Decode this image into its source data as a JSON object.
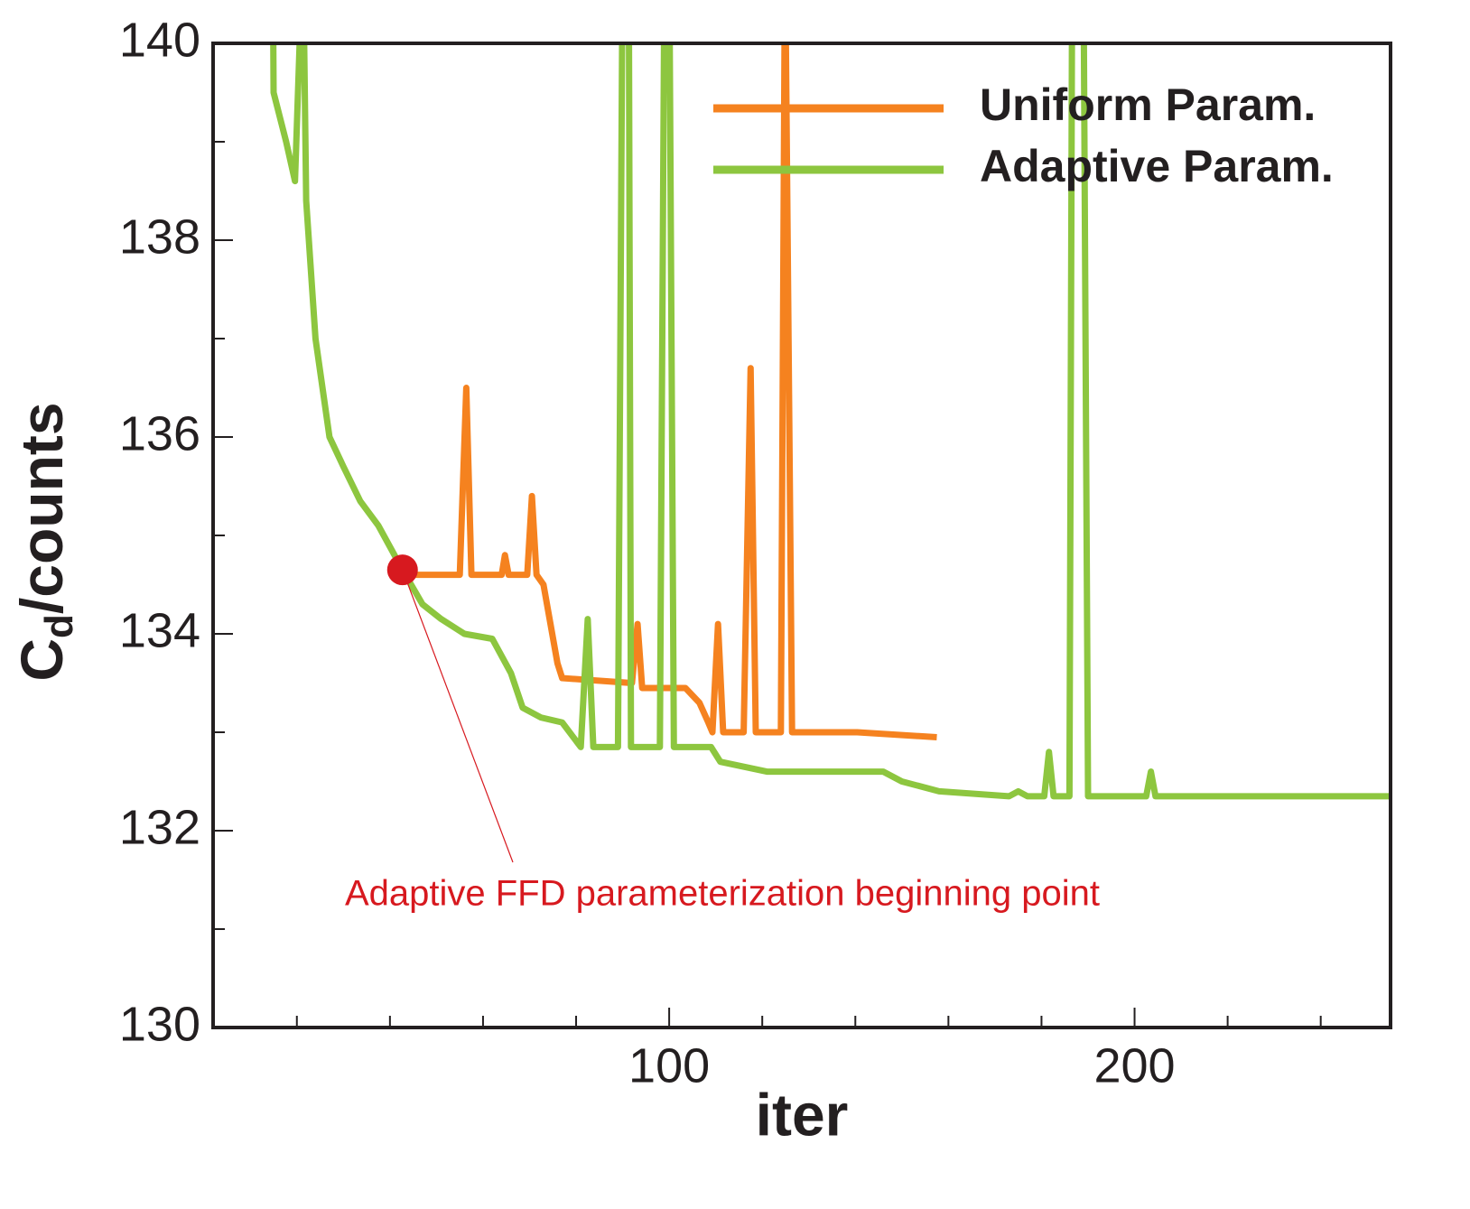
{
  "chart_data": {
    "type": "line",
    "xlabel": "iter",
    "ylabel": [
      "C",
      "d",
      "/counts"
    ],
    "xlim": [
      2,
      255
    ],
    "ylim": [
      130,
      140
    ],
    "xticks": [
      100,
      200
    ],
    "xminorticks": [
      20,
      40,
      60,
      80,
      120,
      140,
      160,
      180,
      220,
      240
    ],
    "yticks": [
      130,
      132,
      134,
      136,
      138,
      140
    ],
    "yminorticks": [
      131,
      133,
      135,
      137,
      139
    ],
    "legend": "upper right",
    "series": [
      {
        "name": "Uniform Param.",
        "color": "#f5821f",
        "x": [
          45,
          55,
          56.4,
          57.5,
          64,
          64.7,
          65.5,
          69.5,
          70.5,
          71.5,
          73,
          76,
          77,
          92,
          93.2,
          94.2,
          103.5,
          106.5,
          108.4,
          109.3,
          110.5,
          111.6,
          116,
          117.5,
          118.6,
          124,
          124.9,
          126.4,
          140.4,
          157.5
        ],
        "values": [
          134.6,
          134.6,
          136.5,
          134.6,
          134.6,
          134.8,
          134.6,
          134.6,
          135.4,
          134.6,
          134.5,
          133.7,
          133.55,
          133.5,
          134.1,
          133.45,
          133.45,
          133.3,
          133.1,
          133.0,
          134.1,
          133.0,
          133.0,
          136.7,
          133.0,
          133.0,
          141,
          133.0,
          133.0,
          132.95
        ]
      },
      {
        "name": "Adaptive Param.",
        "color": "#8dc63f",
        "x": [
          14.8,
          15,
          17.7,
          19.6,
          21.3,
          22,
          24,
          27,
          30,
          33.6,
          37.5,
          42.7,
          47,
          51,
          56,
          62,
          66,
          68.5,
          72.4,
          77,
          81,
          82.5,
          83.7,
          89,
          90,
          91.3,
          91.8,
          98,
          99,
          100,
          101,
          109,
          111,
          121,
          146,
          150,
          158,
          173,
          175,
          177,
          180.6,
          181.6,
          182.6,
          186,
          186.6,
          189,
          190,
          202.5,
          203.5,
          204.5,
          255
        ],
        "values": [
          141,
          139.5,
          139.0,
          138.6,
          141,
          138.4,
          137.0,
          136.0,
          135.7,
          135.35,
          135.1,
          134.65,
          134.3,
          134.15,
          134.0,
          133.95,
          133.6,
          133.25,
          133.15,
          133.1,
          132.85,
          134.15,
          132.85,
          132.85,
          141,
          141,
          132.85,
          132.85,
          141,
          141,
          132.85,
          132.85,
          132.7,
          132.6,
          132.6,
          132.5,
          132.4,
          132.35,
          132.4,
          132.35,
          132.35,
          132.8,
          132.35,
          132.35,
          141,
          141,
          132.35,
          132.35,
          132.6,
          132.35,
          132.35
        ]
      }
    ],
    "annotation": {
      "text": "Adaptive FFD parameterization beginning point",
      "x": 42.7,
      "y": 134.65,
      "color": "#d7191f"
    }
  }
}
